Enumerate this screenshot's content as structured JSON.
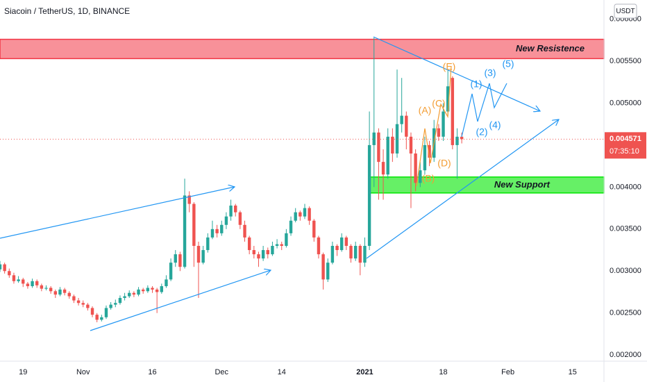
{
  "chart_data": {
    "type": "candlestick",
    "title": "Siacoin / TetherUS, 1D, BINANCE",
    "currency": "USDT",
    "xlim": [
      0,
      130.8
    ],
    "xticks": [
      {
        "value": 5,
        "label": "19"
      },
      {
        "value": 18,
        "label": "Nov"
      },
      {
        "value": 33,
        "label": "16"
      },
      {
        "value": 48,
        "label": "Dec"
      },
      {
        "value": 61,
        "label": "14"
      },
      {
        "value": 79,
        "label": "2021"
      },
      {
        "value": 96,
        "label": "18"
      },
      {
        "value": 110,
        "label": "Feb"
      },
      {
        "value": 124,
        "label": "15"
      }
    ],
    "ylim": [
      0.001927,
      0.006228
    ],
    "yticks": [
      {
        "value": 0.002,
        "label": "0.002000"
      },
      {
        "value": 0.0025,
        "label": "0.002500"
      },
      {
        "value": 0.003,
        "label": "0.003000"
      },
      {
        "value": 0.0035,
        "label": "0.003500"
      },
      {
        "value": 0.004,
        "label": "0.004000"
      },
      {
        "value": 0.0045,
        "label": "0.004500"
      },
      {
        "value": 0.005,
        "label": "0.005000"
      },
      {
        "value": 0.0055,
        "label": "0.005500"
      },
      {
        "value": 0.006,
        "label": "0.006000"
      }
    ],
    "grid": false,
    "up_color": "#26a69a",
    "down_color": "#ef5350",
    "last_price": 0.004571,
    "countdown": "07:35:10",
    "series": [
      {
        "x": [
          0,
          1,
          2,
          3,
          4,
          5,
          6,
          7,
          8,
          9,
          10,
          11,
          12,
          13,
          14,
          15,
          16,
          17,
          18,
          19,
          20,
          21,
          22,
          23,
          24,
          25,
          26,
          27,
          28,
          29,
          30,
          31,
          32,
          33,
          34,
          35,
          36,
          37,
          38,
          39,
          40,
          41,
          42,
          43,
          44,
          45,
          46,
          47,
          48,
          49,
          50,
          51,
          52,
          53,
          54,
          55,
          56,
          57,
          58,
          59,
          60,
          61,
          62,
          63,
          64,
          65,
          66,
          67,
          68,
          69,
          70,
          71,
          72,
          73,
          74,
          75,
          76,
          77,
          78,
          79,
          80,
          81,
          82,
          83,
          84,
          85,
          86,
          87,
          88,
          89,
          90,
          91,
          92,
          93,
          94,
          95,
          96,
          97,
          98,
          99,
          100
        ],
        "ohlc": [
          [
            0.00302,
            0.00312,
            0.00299,
            0.00308
          ],
          [
            0.00308,
            0.0031,
            0.00297,
            0.003
          ],
          [
            0.003,
            0.00303,
            0.00292,
            0.00295
          ],
          [
            0.00295,
            0.00298,
            0.00285,
            0.00288
          ],
          [
            0.00288,
            0.00294,
            0.00286,
            0.0029
          ],
          [
            0.0029,
            0.00292,
            0.00281,
            0.00285
          ],
          [
            0.00285,
            0.00287,
            0.00279,
            0.00282
          ],
          [
            0.00282,
            0.00291,
            0.0028,
            0.00288
          ],
          [
            0.00288,
            0.0029,
            0.0028,
            0.00283
          ],
          [
            0.00283,
            0.00285,
            0.00276,
            0.00279
          ],
          [
            0.00279,
            0.00283,
            0.00277,
            0.0028
          ],
          [
            0.0028,
            0.00282,
            0.00273,
            0.00276
          ],
          [
            0.00276,
            0.00278,
            0.00268,
            0.00272
          ],
          [
            0.00272,
            0.00281,
            0.0027,
            0.00278
          ],
          [
            0.00278,
            0.0028,
            0.00271,
            0.00274
          ],
          [
            0.00274,
            0.00276,
            0.00267,
            0.0027
          ],
          [
            0.0027,
            0.00272,
            0.00262,
            0.00265
          ],
          [
            0.00265,
            0.00268,
            0.00259,
            0.00262
          ],
          [
            0.00262,
            0.00265,
            0.00257,
            0.0026
          ],
          [
            0.0026,
            0.00262,
            0.00253,
            0.00256
          ],
          [
            0.00256,
            0.00258,
            0.00245,
            0.00248
          ],
          [
            0.00248,
            0.0025,
            0.00239,
            0.00242
          ],
          [
            0.00242,
            0.00248,
            0.0024,
            0.00245
          ],
          [
            0.00245,
            0.00259,
            0.00243,
            0.00256
          ],
          [
            0.00256,
            0.00263,
            0.00254,
            0.0026
          ],
          [
            0.0026,
            0.00266,
            0.00257,
            0.00262
          ],
          [
            0.00262,
            0.00271,
            0.0026,
            0.00268
          ],
          [
            0.00268,
            0.00274,
            0.00265,
            0.0027
          ],
          [
            0.0027,
            0.00277,
            0.00268,
            0.00274
          ],
          [
            0.00274,
            0.00276,
            0.00269,
            0.00272
          ],
          [
            0.00272,
            0.00281,
            0.0027,
            0.00278
          ],
          [
            0.00278,
            0.0028,
            0.00273,
            0.00276
          ],
          [
            0.00276,
            0.00283,
            0.00274,
            0.0028
          ],
          [
            0.0028,
            0.00282,
            0.00274,
            0.00278
          ],
          [
            0.00278,
            0.0028,
            0.0025,
            0.00275
          ],
          [
            0.00275,
            0.00285,
            0.00273,
            0.00282
          ],
          [
            0.00282,
            0.00295,
            0.0028,
            0.0029
          ],
          [
            0.0029,
            0.00315,
            0.00288,
            0.0031
          ],
          [
            0.0031,
            0.00325,
            0.00305,
            0.0032
          ],
          [
            0.0032,
            0.00323,
            0.003,
            0.00305
          ],
          [
            0.00305,
            0.0041,
            0.00303,
            0.0039
          ],
          [
            0.0039,
            0.00395,
            0.0037,
            0.0038
          ],
          [
            0.0038,
            0.00382,
            0.00305,
            0.0033
          ],
          [
            0.0033,
            0.00335,
            0.00268,
            0.0031
          ],
          [
            0.0031,
            0.0033,
            0.00308,
            0.00325
          ],
          [
            0.00325,
            0.00345,
            0.00322,
            0.0034
          ],
          [
            0.0034,
            0.0036,
            0.00338,
            0.0035
          ],
          [
            0.0035,
            0.00355,
            0.0034,
            0.00345
          ],
          [
            0.00345,
            0.0036,
            0.00342,
            0.00355
          ],
          [
            0.00355,
            0.0037,
            0.0035,
            0.00365
          ],
          [
            0.00365,
            0.00385,
            0.0036,
            0.00378
          ],
          [
            0.00378,
            0.0038,
            0.00365,
            0.0037
          ],
          [
            0.0037,
            0.00372,
            0.0035,
            0.00355
          ],
          [
            0.00355,
            0.0036,
            0.00335,
            0.0034
          ],
          [
            0.0034,
            0.00342,
            0.0032,
            0.00325
          ],
          [
            0.00325,
            0.0033,
            0.00315,
            0.0032
          ],
          [
            0.0032,
            0.00323,
            0.00305,
            0.00315
          ],
          [
            0.00315,
            0.0033,
            0.00312,
            0.00325
          ],
          [
            0.00325,
            0.00328,
            0.00315,
            0.0032
          ],
          [
            0.0032,
            0.00335,
            0.00318,
            0.0033
          ],
          [
            0.0033,
            0.00338,
            0.00327,
            0.00332
          ],
          [
            0.00332,
            0.00335,
            0.00325,
            0.0033
          ],
          [
            0.0033,
            0.0035,
            0.00328,
            0.00345
          ],
          [
            0.00345,
            0.00365,
            0.00342,
            0.0036
          ],
          [
            0.0036,
            0.00375,
            0.00358,
            0.0037
          ],
          [
            0.0037,
            0.00372,
            0.0036,
            0.00365
          ],
          [
            0.00365,
            0.0038,
            0.00362,
            0.00375
          ],
          [
            0.00375,
            0.00377,
            0.00355,
            0.0036
          ],
          [
            0.0036,
            0.00362,
            0.00335,
            0.0034
          ],
          [
            0.0034,
            0.00342,
            0.00315,
            0.0032
          ],
          [
            0.0032,
            0.00322,
            0.00278,
            0.0029
          ],
          [
            0.0029,
            0.00315,
            0.00287,
            0.0031
          ],
          [
            0.0031,
            0.00335,
            0.00308,
            0.0033
          ],
          [
            0.0033,
            0.00332,
            0.00318,
            0.00325
          ],
          [
            0.00325,
            0.00345,
            0.00323,
            0.0034
          ],
          [
            0.0034,
            0.00342,
            0.00325,
            0.0033
          ],
          [
            0.0033,
            0.00332,
            0.0031,
            0.00315
          ],
          [
            0.00315,
            0.00335,
            0.00312,
            0.0033
          ],
          [
            0.0033,
            0.00332,
            0.00295,
            0.0031
          ],
          [
            0.0031,
            0.0034,
            0.00305,
            0.0033
          ],
          [
            0.0033,
            0.0049,
            0.00325,
            0.0045
          ],
          [
            0.0045,
            0.00578,
            0.004,
            0.00465
          ],
          [
            0.00465,
            0.0047,
            0.00385,
            0.0043
          ],
          [
            0.0043,
            0.00445,
            0.00385,
            0.00415
          ],
          [
            0.00415,
            0.0047,
            0.0041,
            0.0046
          ],
          [
            0.0046,
            0.0047,
            0.0043,
            0.0044
          ],
          [
            0.0044,
            0.0054,
            0.00435,
            0.00475
          ],
          [
            0.00475,
            0.0053,
            0.00465,
            0.00485
          ],
          [
            0.00485,
            0.0049,
            0.00445,
            0.0046
          ],
          [
            0.0046,
            0.00465,
            0.00375,
            0.0044
          ],
          [
            0.0044,
            0.00445,
            0.00395,
            0.00405
          ],
          [
            0.00405,
            0.0043,
            0.004,
            0.0042
          ],
          [
            0.0042,
            0.0046,
            0.00415,
            0.0045
          ],
          [
            0.0045,
            0.00455,
            0.00425,
            0.00435
          ],
          [
            0.00435,
            0.0048,
            0.0043,
            0.0047
          ],
          [
            0.0047,
            0.00475,
            0.00455,
            0.0046
          ],
          [
            0.0046,
            0.005,
            0.00455,
            0.0049
          ],
          [
            0.0049,
            0.0054,
            0.00485,
            0.0052
          ],
          [
            0.0053,
            0.00532,
            0.00445,
            0.0045
          ],
          [
            0.0045,
            0.0047,
            0.0041,
            0.0046
          ],
          [
            0.0046,
            0.00465,
            0.00452,
            0.004571
          ]
        ]
      }
    ],
    "zones": [
      {
        "label": "New Resistence",
        "low": 0.00553,
        "high": 0.00576,
        "color": "#f23645"
      },
      {
        "label": "New Support",
        "low": 0.00393,
        "high": 0.00412,
        "color": "#00e600"
      }
    ],
    "annotations": [
      {
        "text": "(A)",
        "color": "#f39c32"
      },
      {
        "text": "(B)",
        "color": "#f39c32"
      },
      {
        "text": "(C)",
        "color": "#f39c32"
      },
      {
        "text": "(D)",
        "color": "#f39c32"
      },
      {
        "text": "(E)",
        "color": "#f39c32"
      },
      {
        "text": "(1)",
        "color": "#2196f3"
      },
      {
        "text": "(2)",
        "color": "#2196f3"
      },
      {
        "text": "(3)",
        "color": "#2196f3"
      },
      {
        "text": "(4)",
        "color": "#2196f3"
      },
      {
        "text": "(5)",
        "color": "#2196f3"
      }
    ]
  }
}
